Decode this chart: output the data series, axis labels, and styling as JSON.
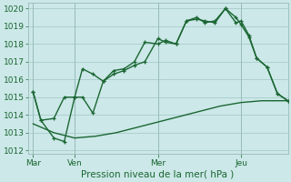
{
  "background_color": "#cce8e8",
  "grid_color": "#aacccc",
  "line_color": "#1a6632",
  "title": "Pression niveau de la mer( hPa )",
  "ylim": [
    1011.8,
    1020.3
  ],
  "yticks": [
    1012,
    1013,
    1014,
    1015,
    1016,
    1017,
    1018,
    1019,
    1020
  ],
  "xlim": [
    0,
    100
  ],
  "day_positions": [
    2,
    18,
    50,
    82
  ],
  "day_labels": [
    "Mar",
    "Ven",
    "Mer",
    "Jeu"
  ],
  "vline_positions": [
    2,
    18,
    50,
    82
  ],
  "line1_x": [
    2,
    5,
    10,
    14,
    18,
    21,
    25,
    29,
    33,
    37,
    41,
    45,
    50,
    53,
    57,
    61,
    65,
    68,
    72,
    76,
    80,
    82,
    85,
    88,
    92,
    96,
    100
  ],
  "line1_y": [
    1015.3,
    1013.7,
    1013.8,
    1015.0,
    1015.0,
    1016.6,
    1016.3,
    1015.9,
    1016.5,
    1016.6,
    1017.0,
    1018.1,
    1018.0,
    1018.2,
    1018.0,
    1019.3,
    1019.5,
    1019.2,
    1019.3,
    1020.0,
    1019.2,
    1019.3,
    1018.5,
    1017.2,
    1016.7,
    1015.2,
    1014.8
  ],
  "line2_x": [
    2,
    5,
    10,
    14,
    18,
    21,
    25,
    29,
    33,
    37,
    41,
    45,
    50,
    53,
    57,
    61,
    65,
    68,
    72,
    76,
    80,
    82,
    85,
    88,
    92,
    96,
    100
  ],
  "line2_y": [
    1015.3,
    1013.7,
    1012.7,
    1012.5,
    1015.0,
    1015.0,
    1014.1,
    1015.9,
    1016.3,
    1016.5,
    1016.8,
    1017.0,
    1018.3,
    1018.1,
    1018.0,
    1019.3,
    1019.4,
    1019.3,
    1019.2,
    1020.0,
    1019.5,
    1019.1,
    1018.4,
    1017.2,
    1016.7,
    1015.2,
    1014.8
  ],
  "line3_x": [
    2,
    10,
    18,
    26,
    34,
    42,
    50,
    58,
    66,
    74,
    82,
    90,
    100
  ],
  "line3_y": [
    1013.5,
    1013.0,
    1012.7,
    1012.8,
    1013.0,
    1013.3,
    1013.6,
    1013.9,
    1014.2,
    1014.5,
    1014.7,
    1014.8,
    1014.8
  ],
  "tick_fontsize": 6.5,
  "label_fontsize": 7.5
}
